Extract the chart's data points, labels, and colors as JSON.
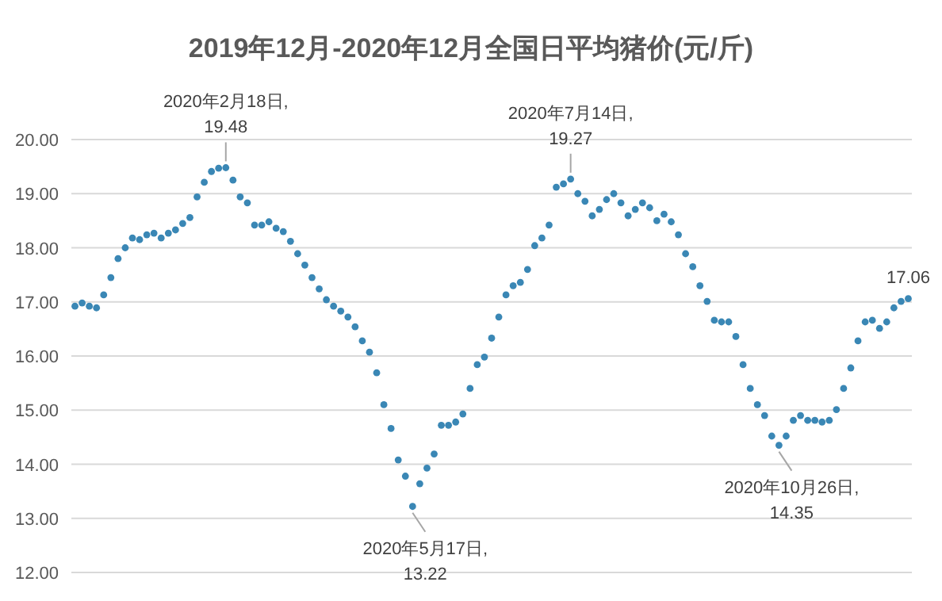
{
  "chart_data": {
    "type": "scatter",
    "title": "2019年12月-2020年12月全国日平均猪价(元/斤)",
    "marker": "circle",
    "grid": "y",
    "ylim": [
      12,
      20
    ],
    "yticks": [
      {
        "value": 12,
        "label": "12.00"
      },
      {
        "value": 13,
        "label": "13.00"
      },
      {
        "value": 14,
        "label": "14.00"
      },
      {
        "value": 15,
        "label": "15.00"
      },
      {
        "value": 16,
        "label": "16.00"
      },
      {
        "value": 17,
        "label": "17.00"
      },
      {
        "value": 18,
        "label": "18.00"
      },
      {
        "value": 19,
        "label": "19.00"
      },
      {
        "value": 20,
        "label": "20.00"
      }
    ],
    "categories": [
      null,
      null,
      null,
      null,
      null,
      null,
      null,
      null,
      null,
      null,
      null,
      null,
      null,
      null,
      null,
      null,
      null,
      null,
      null,
      null,
      null,
      null,
      null,
      null,
      null,
      null,
      null,
      null,
      null,
      null,
      null,
      null,
      null,
      null,
      null,
      null,
      null,
      null,
      null,
      null,
      null,
      null,
      null,
      null,
      null,
      null,
      null,
      null,
      null,
      null,
      null,
      null,
      null,
      null,
      null,
      null,
      null,
      null,
      null,
      null,
      null,
      null,
      null,
      null,
      null,
      null,
      null,
      null,
      null,
      null,
      null,
      null,
      null,
      null,
      null,
      null,
      null,
      null,
      null,
      null,
      null,
      null,
      null,
      null,
      null,
      null,
      null,
      null,
      null,
      null,
      null,
      null,
      null,
      null,
      null,
      null,
      null,
      null,
      null,
      null,
      null,
      null,
      null,
      null,
      null,
      null,
      null,
      null,
      null,
      null,
      null,
      null,
      null,
      null,
      null,
      null,
      null
    ],
    "series": [
      {
        "color": "#3a87b5",
        "values": [
          16.92,
          16.98,
          16.92,
          16.89,
          17.13,
          17.45,
          17.8,
          18.0,
          18.18,
          18.15,
          18.24,
          18.27,
          18.18,
          18.27,
          18.33,
          18.45,
          18.56,
          18.94,
          19.21,
          19.41,
          19.47,
          19.48,
          19.25,
          18.94,
          18.83,
          18.42,
          18.42,
          18.48,
          18.36,
          18.3,
          18.12,
          17.89,
          17.68,
          17.45,
          17.24,
          17.04,
          16.92,
          16.83,
          16.72,
          16.54,
          16.28,
          16.07,
          15.69,
          15.1,
          14.66,
          14.08,
          13.78,
          13.22,
          13.64,
          13.93,
          14.19,
          14.72,
          14.72,
          14.78,
          14.93,
          15.4,
          15.84,
          15.98,
          16.33,
          16.72,
          17.13,
          17.3,
          17.36,
          17.6,
          18.04,
          18.18,
          18.42,
          19.12,
          19.18,
          19.27,
          19.0,
          18.86,
          18.59,
          18.71,
          18.89,
          19.0,
          18.83,
          18.59,
          18.71,
          18.83,
          18.74,
          18.5,
          18.62,
          18.48,
          18.24,
          17.89,
          17.65,
          17.3,
          17.01,
          16.66,
          16.63,
          16.63,
          16.36,
          15.84,
          15.4,
          15.1,
          14.9,
          14.52,
          14.35,
          14.52,
          14.81,
          14.9,
          14.81,
          14.81,
          14.78,
          14.81,
          15.01,
          15.4,
          15.78,
          16.28,
          16.63,
          16.66,
          16.51,
          16.63,
          16.89,
          17.01,
          17.06
        ],
        "value_labels": [
          null,
          null,
          null,
          null,
          null,
          null,
          null,
          null,
          null,
          null,
          null,
          null,
          null,
          null,
          null,
          null,
          null,
          null,
          null,
          null,
          null,
          "2020年2月18日,\n19.48",
          null,
          null,
          null,
          null,
          null,
          null,
          null,
          null,
          null,
          null,
          null,
          null,
          null,
          null,
          null,
          null,
          null,
          null,
          null,
          null,
          null,
          null,
          null,
          null,
          null,
          "2020年5月17日,\n13.22",
          null,
          null,
          null,
          null,
          null,
          null,
          null,
          null,
          null,
          null,
          null,
          null,
          null,
          null,
          null,
          null,
          null,
          null,
          null,
          null,
          null,
          "2020年7月14日,\n19.27",
          null,
          null,
          null,
          null,
          null,
          null,
          null,
          null,
          null,
          null,
          null,
          null,
          null,
          null,
          null,
          null,
          null,
          null,
          null,
          null,
          null,
          null,
          null,
          null,
          null,
          null,
          null,
          null,
          "2020年10月26日,\n14.35",
          null,
          null,
          null,
          null,
          null,
          null,
          null,
          null,
          null,
          null,
          null,
          null,
          null,
          null,
          null,
          null,
          null,
          "17.06"
        ]
      }
    ]
  }
}
